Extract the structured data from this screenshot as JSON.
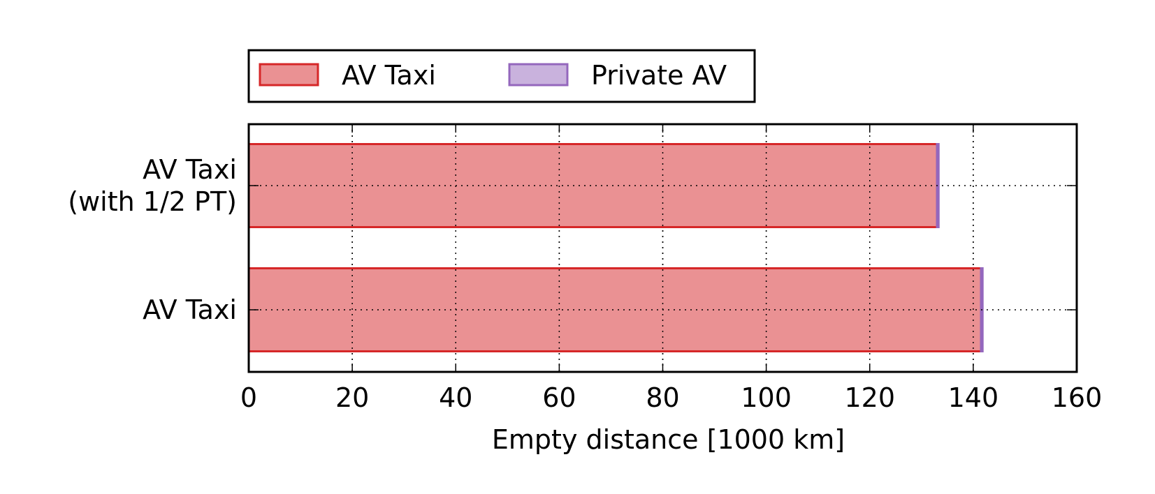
{
  "chart_data": {
    "type": "bar",
    "orientation": "horizontal",
    "stacked": true,
    "categories": [
      "AV Taxi\n(with 1/2 PT)",
      "AV Taxi"
    ],
    "series": [
      {
        "name": "AV Taxi",
        "values": [
          133.0,
          141.5
        ],
        "color": "#d62728",
        "fill": "#ea9193"
      },
      {
        "name": "Private AV",
        "values": [
          0.3,
          0.3
        ],
        "color": "#9467bd",
        "fill": "#c9b2dd"
      }
    ],
    "xlabel": "Empty distance [1000 km]",
    "ylabel": "",
    "xlim": [
      0,
      160
    ],
    "xticks": [
      0,
      20,
      40,
      60,
      80,
      100,
      120,
      140,
      160
    ],
    "grid": true,
    "legend": {
      "position": "top-left",
      "entries": [
        "AV Taxi",
        "Private AV"
      ]
    }
  }
}
